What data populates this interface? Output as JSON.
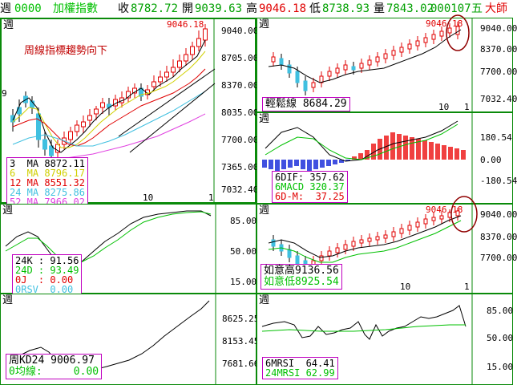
{
  "topbar": {
    "period": "週",
    "code": "0000",
    "name": "加權指數",
    "close_label": "收",
    "close": "8782.72",
    "open_label": "開",
    "open": "9039.63",
    "high_label": "高",
    "high": "9046.18",
    "low_label": "低",
    "low": "8738.93",
    "vol_label": "量",
    "vol": "7843.02",
    "date": "000107",
    "weekday": "五",
    "extra": "大師"
  },
  "panels": {
    "main": {
      "tag": "週",
      "annotation": "周線指標趨勢向下",
      "peak_label": "9046.18",
      "bottom_numbers": [
        "10",
        "1"
      ],
      "yaxis": [
        "9040.00",
        "8705.00",
        "8370.00",
        "8035.00",
        "7700.00",
        "7365.00",
        "7032.40"
      ],
      "legend": [
        {
          "text": "3  MA 8872.11",
          "color": "#000000"
        },
        {
          "text": "6  MA 8796.17",
          "color": "#d0d000"
        },
        {
          "text": "12 MA 8551.32",
          "color": "#e00000"
        },
        {
          "text": "24 MA 8275.86",
          "color": "#40c0e0"
        },
        {
          "text": "52 MA 7966.02",
          "color": "#e040e0"
        }
      ],
      "left_mark": "9"
    },
    "kline_small": {
      "tag": "週",
      "peak_label": "9046.18",
      "yaxis": [
        "9040.00",
        "8370.00",
        "7700.00",
        "7032.40"
      ],
      "bottom_numbers": [
        "10",
        "1"
      ],
      "legend": [
        {
          "text": "輕鬆線 8684.29",
          "color": "#000000"
        }
      ]
    },
    "macd": {
      "tag": "週",
      "yaxis": [
        "180.54",
        "0.00",
        "-180.54"
      ],
      "legend": [
        {
          "text": "6DIF: 357.62",
          "color": "#000000"
        },
        {
          "text": "6MACD 320.37",
          "color": "#00c000"
        },
        {
          "text": "6D-M:  37.25",
          "color": "#e00000"
        }
      ]
    },
    "kd": {
      "tag": "週",
      "yaxis": [
        "85.00",
        "50.00",
        "15.00"
      ],
      "legend": [
        {
          "text": "24K : 91.56",
          "color": "#000000"
        },
        {
          "text": "24D : 93.49",
          "color": "#00c000"
        },
        {
          "text": "0J  : 0.00",
          "color": "#e00000"
        },
        {
          "text": "0RSV  0.00",
          "color": "#40c0e0"
        }
      ]
    },
    "ruyi": {
      "tag": "週",
      "peak_label": "9046.18",
      "yaxis": [
        "9040.00",
        "8370.00",
        "7700.00"
      ],
      "bottom_numbers": [
        "10",
        "1"
      ],
      "legend": [
        {
          "text": "如意高9136.56",
          "color": "#000000"
        },
        {
          "text": "如意低8925.54",
          "color": "#00c000"
        }
      ]
    },
    "kd24": {
      "tag": "週",
      "yaxis": [
        "8625.25",
        "8153.45",
        "7681.66"
      ],
      "legend": [
        {
          "text": "周KD24 9006.97",
          "color": "#000000"
        },
        {
          "text": "0均線:     0.00",
          "color": "#00c000"
        }
      ]
    },
    "mrsi": {
      "tag": "週",
      "yaxis": [
        "85.00",
        "50.00",
        "15.00"
      ],
      "legend": [
        {
          "text": "6MRSI  64.41",
          "color": "#000000"
        },
        {
          "text": "24MRSI 62.99",
          "color": "#00c000"
        }
      ]
    }
  }
}
